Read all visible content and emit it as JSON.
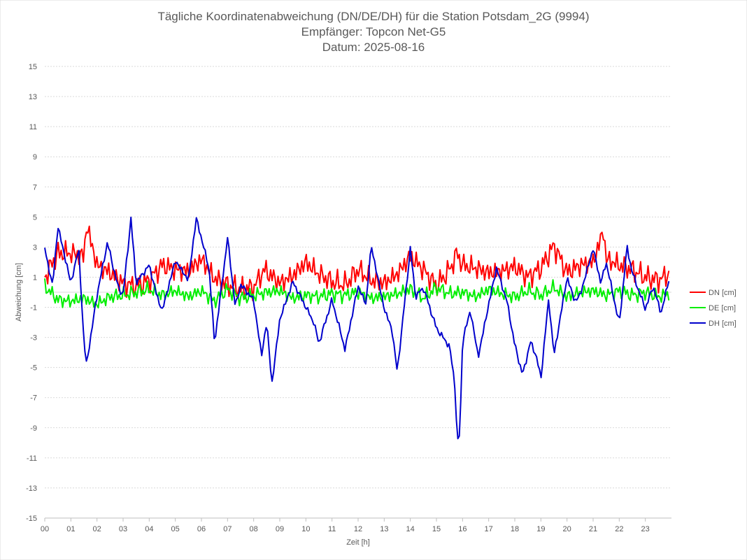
{
  "chart_data": {
    "type": "line",
    "title_lines": [
      "Tägliche Koordinatenabweichung (DN/DE/DH) für die Station Potsdam_2G (9994)",
      "Empfänger: Topcon Net-G5",
      "Datum: 2025-08-16"
    ],
    "xlabel": "Zeit [h]",
    "ylabel": "Abweichung [cm]",
    "xlim": [
      0,
      24
    ],
    "ylim": [
      -15,
      15
    ],
    "y_ticks": [
      15,
      13,
      11,
      9,
      7,
      5,
      3,
      1,
      -1,
      -3,
      -5,
      -7,
      -9,
      -11,
      -13,
      -15
    ],
    "x_ticks": [
      "00",
      "01",
      "02",
      "03",
      "04",
      "05",
      "06",
      "07",
      "08",
      "09",
      "10",
      "11",
      "12",
      "13",
      "14",
      "15",
      "16",
      "17",
      "18",
      "19",
      "20",
      "21",
      "22",
      "23"
    ],
    "grid": true,
    "legend_position": "right",
    "series": [
      {
        "name": "DN [cm]",
        "color": "#ff0000",
        "x": [
          0,
          0.5,
          1,
          1.5,
          1.6,
          2,
          2.5,
          3,
          3.5,
          4,
          4.5,
          5,
          5.5,
          6,
          6.5,
          7,
          7.5,
          8,
          8.4,
          8.8,
          9,
          9.5,
          10,
          10.5,
          11,
          11.5,
          12,
          12.5,
          13,
          13.5,
          14,
          14.5,
          15,
          15.5,
          15.8,
          16,
          16.5,
          17,
          17.5,
          18,
          18.5,
          19,
          19.5,
          20,
          20.5,
          21,
          21.4,
          21.5,
          22,
          22.5,
          23,
          23.5,
          23.9
        ],
        "values": [
          1.0,
          2.6,
          2.6,
          2.4,
          4.5,
          1.8,
          1.3,
          0.6,
          0.4,
          0.8,
          1.8,
          1.5,
          1.4,
          2.2,
          0.9,
          0.5,
          0.2,
          0.3,
          1.5,
          0.9,
          0.6,
          1.1,
          2.0,
          1.2,
          0.7,
          0.5,
          1.5,
          0.8,
          0.6,
          1.2,
          2.4,
          1.5,
          0.4,
          1.5,
          2.6,
          1.8,
          1.6,
          1.3,
          1.4,
          1.7,
          1.0,
          1.6,
          3.1,
          1.3,
          1.8,
          2.0,
          4.1,
          2.2,
          1.8,
          1.5,
          1.0,
          0.8,
          1.2
        ]
      },
      {
        "name": "DE [cm]",
        "color": "#00ee00",
        "x": [
          0,
          0.5,
          1,
          1.5,
          2,
          2.5,
          3,
          3.5,
          4,
          4.5,
          5,
          5.5,
          6,
          6.5,
          7,
          7.5,
          8,
          8.5,
          9,
          9.5,
          10,
          10.5,
          11,
          11.5,
          12,
          12.5,
          13,
          13.5,
          14,
          14.5,
          15,
          15.5,
          16,
          16.5,
          17,
          17.5,
          18,
          18.5,
          19,
          19.5,
          20,
          20.5,
          21,
          21.5,
          22,
          22.5,
          23,
          23.5,
          23.9
        ],
        "values": [
          0.4,
          -0.5,
          -0.6,
          -0.4,
          -0.8,
          -0.3,
          -0.2,
          0.0,
          0.2,
          -0.2,
          0.1,
          -0.3,
          0.1,
          -0.6,
          0.2,
          -0.4,
          -0.2,
          0.0,
          0.1,
          -0.4,
          -0.2,
          -0.3,
          -0.1,
          -0.2,
          0.0,
          -0.4,
          -0.3,
          -0.1,
          0.2,
          -0.4,
          0.3,
          -0.1,
          0.0,
          -0.3,
          0.2,
          -0.1,
          -0.3,
          0.1,
          -0.2,
          0.3,
          -0.3,
          0.0,
          0.1,
          -0.2,
          0.1,
          -0.2,
          0.0,
          -0.3,
          -0.1
        ]
      },
      {
        "name": "DH [cm]",
        "color": "#0000cc",
        "x": [
          0,
          0.3,
          0.5,
          1,
          1.3,
          1.5,
          1.6,
          2,
          2.4,
          2.8,
          3,
          3.3,
          3.5,
          4,
          4.3,
          4.5,
          5,
          5.5,
          5.8,
          6,
          6.3,
          6.5,
          7,
          7.3,
          7.5,
          8,
          8.3,
          8.5,
          8.7,
          9,
          9.5,
          10,
          10.3,
          10.5,
          11,
          11.5,
          12,
          12.3,
          12.5,
          13,
          13.3,
          13.5,
          14,
          14.2,
          14.5,
          15,
          15.5,
          15.7,
          15.8,
          15.9,
          16,
          16.3,
          16.6,
          17,
          17.3,
          17.7,
          18,
          18.3,
          18.6,
          18.8,
          19,
          19.3,
          19.5,
          20,
          20.3,
          20.5,
          21,
          21.3,
          21.5,
          22,
          22.3,
          22.5,
          23,
          23.3,
          23.6,
          23.9
        ],
        "values": [
          2.9,
          0.4,
          4.4,
          0.6,
          2.9,
          -3.3,
          -4.8,
          -0.2,
          3.3,
          0.4,
          -0.2,
          4.9,
          0.6,
          1.8,
          -0.3,
          -1.2,
          2.1,
          0.8,
          4.9,
          3.6,
          1.5,
          -3.4,
          3.6,
          -1.0,
          0.5,
          -0.5,
          -4.2,
          -2.0,
          -6.1,
          -1.8,
          0.7,
          -1.0,
          -2.0,
          -3.4,
          -0.5,
          -3.8,
          0.4,
          -0.8,
          3.1,
          -1.1,
          -2.5,
          -5.3,
          2.9,
          -0.3,
          0.3,
          -2.4,
          -3.6,
          -6.0,
          -10.0,
          -9.3,
          -3.2,
          -1.2,
          -4.3,
          -0.8,
          1.6,
          -0.6,
          -3.5,
          -5.5,
          -3.3,
          -4.1,
          -5.7,
          -0.4,
          -4.2,
          1.0,
          -0.6,
          -0.2,
          2.9,
          0.6,
          2.0,
          -2.1,
          3.0,
          1.3,
          -1.1,
          0.4,
          -1.4,
          0.8
        ]
      }
    ]
  }
}
